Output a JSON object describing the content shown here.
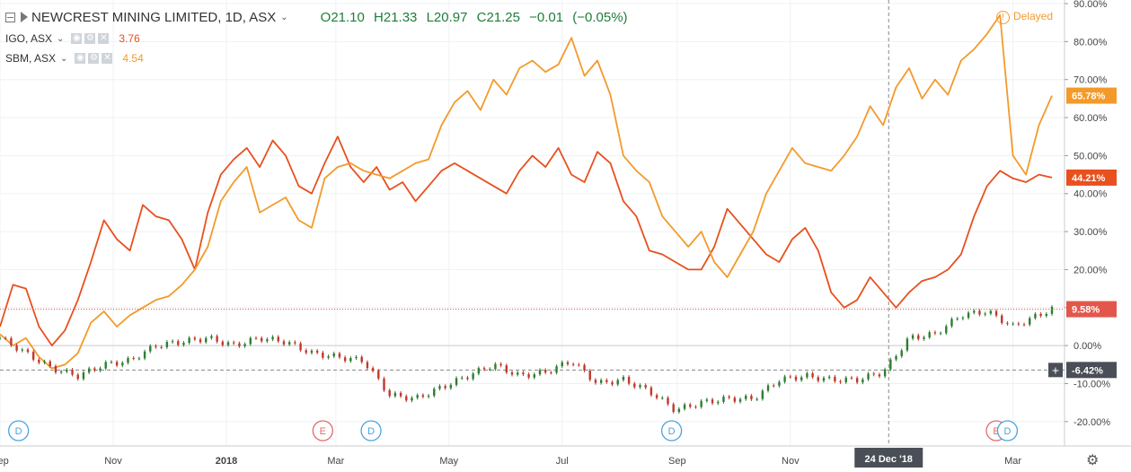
{
  "header": {
    "main_symbol": "NEWCREST MINING LIMITED, 1D, ASX",
    "ohlc": "O21.10 H21.33 L20.97 C21.25 −0.01 (−0.05%)",
    "delayed_label": "Delayed",
    "comparisons": [
      {
        "label": "IGO, ASX",
        "value": "3.76",
        "color": "#e8501e"
      },
      {
        "label": "SBM, ASX",
        "value": "4.54",
        "color": "#f39a2b"
      }
    ]
  },
  "colors": {
    "main_up": "#2e7d32",
    "main_down": "#c0392b",
    "igo": "#e8501e",
    "sbm": "#f39a2b",
    "grid": "#eef1f5",
    "crosshair": "#888888",
    "event_dividend": "#4aa3df",
    "event_earnings": "#e06b6b"
  },
  "chart_data": {
    "type": "line",
    "y_unit": "%",
    "ylim": [
      -25,
      90
    ],
    "y_ticks": [
      "90.00%",
      "80.00%",
      "70.00%",
      "60.00%",
      "50.00%",
      "40.00%",
      "30.00%",
      "20.00%",
      "10.00%",
      "0.00%",
      "-10.00%",
      "-20.00%"
    ],
    "y_tick_values": [
      90,
      80,
      70,
      60,
      50,
      40,
      30,
      20,
      10,
      0,
      -10,
      -20
    ],
    "x_tick_labels": [
      "Sep",
      "Nov",
      "2018",
      "Mar",
      "May",
      "Jul",
      "Sep",
      "Nov",
      "Mar"
    ],
    "x_tick_dates": [
      "2017-09-01",
      "2017-11-01",
      "2018-01-01",
      "2018-03-01",
      "2018-05-01",
      "2018-07-01",
      "2018-09-01",
      "2018-11-01",
      "2019-03-01"
    ],
    "x_range": [
      "2017-09-01",
      "2019-03-22"
    ],
    "crosshair_label": "24 Dec '18",
    "crosshair_date": "2018-12-24",
    "grid": true,
    "series": [
      {
        "name": "IGO, ASX",
        "last_label": "44.21%",
        "points": [
          [
            "2017-09-01",
            5
          ],
          [
            "2017-09-08",
            16
          ],
          [
            "2017-09-15",
            15
          ],
          [
            "2017-09-22",
            5
          ],
          [
            "2017-09-29",
            0
          ],
          [
            "2017-10-06",
            4
          ],
          [
            "2017-10-13",
            12
          ],
          [
            "2017-10-20",
            22
          ],
          [
            "2017-10-27",
            33
          ],
          [
            "2017-11-03",
            28
          ],
          [
            "2017-11-10",
            25
          ],
          [
            "2017-11-17",
            37
          ],
          [
            "2017-11-24",
            34
          ],
          [
            "2017-12-01",
            33
          ],
          [
            "2017-12-08",
            28
          ],
          [
            "2017-12-15",
            20
          ],
          [
            "2017-12-22",
            35
          ],
          [
            "2017-12-29",
            45
          ],
          [
            "2018-01-05",
            49
          ],
          [
            "2018-01-12",
            52
          ],
          [
            "2018-01-19",
            47
          ],
          [
            "2018-01-26",
            54
          ],
          [
            "2018-02-02",
            50
          ],
          [
            "2018-02-09",
            42
          ],
          [
            "2018-02-16",
            40
          ],
          [
            "2018-02-23",
            48
          ],
          [
            "2018-03-02",
            55
          ],
          [
            "2018-03-09",
            47
          ],
          [
            "2018-03-16",
            43
          ],
          [
            "2018-03-23",
            47
          ],
          [
            "2018-03-30",
            41
          ],
          [
            "2018-04-06",
            43
          ],
          [
            "2018-04-13",
            38
          ],
          [
            "2018-04-20",
            42
          ],
          [
            "2018-04-27",
            46
          ],
          [
            "2018-05-04",
            48
          ],
          [
            "2018-05-11",
            46
          ],
          [
            "2018-05-18",
            44
          ],
          [
            "2018-05-25",
            42
          ],
          [
            "2018-06-01",
            40
          ],
          [
            "2018-06-08",
            46
          ],
          [
            "2018-06-15",
            50
          ],
          [
            "2018-06-22",
            47
          ],
          [
            "2018-06-29",
            52
          ],
          [
            "2018-07-06",
            45
          ],
          [
            "2018-07-13",
            43
          ],
          [
            "2018-07-20",
            51
          ],
          [
            "2018-07-27",
            48
          ],
          [
            "2018-08-03",
            38
          ],
          [
            "2018-08-10",
            34
          ],
          [
            "2018-08-17",
            25
          ],
          [
            "2018-08-24",
            24
          ],
          [
            "2018-08-31",
            22
          ],
          [
            "2018-09-07",
            20
          ],
          [
            "2018-09-14",
            20
          ],
          [
            "2018-09-21",
            26
          ],
          [
            "2018-09-28",
            36
          ],
          [
            "2018-10-05",
            32
          ],
          [
            "2018-10-12",
            28
          ],
          [
            "2018-10-19",
            24
          ],
          [
            "2018-10-26",
            22
          ],
          [
            "2018-11-02",
            28
          ],
          [
            "2018-11-09",
            31
          ],
          [
            "2018-11-16",
            25
          ],
          [
            "2018-11-23",
            14
          ],
          [
            "2018-11-30",
            10
          ],
          [
            "2018-12-07",
            12
          ],
          [
            "2018-12-14",
            18
          ],
          [
            "2018-12-21",
            14
          ],
          [
            "2018-12-28",
            10
          ],
          [
            "2019-01-04",
            14
          ],
          [
            "2019-01-11",
            17
          ],
          [
            "2019-01-18",
            18
          ],
          [
            "2019-01-25",
            20
          ],
          [
            "2019-02-01",
            24
          ],
          [
            "2019-02-08",
            34
          ],
          [
            "2019-02-15",
            42
          ],
          [
            "2019-02-22",
            46
          ],
          [
            "2019-03-01",
            44
          ],
          [
            "2019-03-08",
            43
          ],
          [
            "2019-03-15",
            45
          ],
          [
            "2019-03-22",
            44.21
          ]
        ]
      },
      {
        "name": "SBM, ASX",
        "last_label": "65.78%",
        "points": [
          [
            "2017-09-01",
            3
          ],
          [
            "2017-09-08",
            0
          ],
          [
            "2017-09-15",
            2
          ],
          [
            "2017-09-22",
            -3
          ],
          [
            "2017-09-29",
            -6
          ],
          [
            "2017-10-06",
            -5
          ],
          [
            "2017-10-13",
            -2
          ],
          [
            "2017-10-20",
            6
          ],
          [
            "2017-10-27",
            9
          ],
          [
            "2017-11-03",
            5
          ],
          [
            "2017-11-10",
            8
          ],
          [
            "2017-11-17",
            10
          ],
          [
            "2017-11-24",
            12
          ],
          [
            "2017-12-01",
            13
          ],
          [
            "2017-12-08",
            16
          ],
          [
            "2017-12-15",
            20
          ],
          [
            "2017-12-22",
            26
          ],
          [
            "2017-12-29",
            38
          ],
          [
            "2018-01-05",
            43
          ],
          [
            "2018-01-12",
            47
          ],
          [
            "2018-01-19",
            35
          ],
          [
            "2018-01-26",
            37
          ],
          [
            "2018-02-02",
            39
          ],
          [
            "2018-02-09",
            33
          ],
          [
            "2018-02-16",
            31
          ],
          [
            "2018-02-23",
            44
          ],
          [
            "2018-03-02",
            47
          ],
          [
            "2018-03-09",
            48
          ],
          [
            "2018-03-16",
            46
          ],
          [
            "2018-03-23",
            45
          ],
          [
            "2018-03-30",
            44
          ],
          [
            "2018-04-06",
            46
          ],
          [
            "2018-04-13",
            48
          ],
          [
            "2018-04-20",
            49
          ],
          [
            "2018-04-27",
            58
          ],
          [
            "2018-05-04",
            64
          ],
          [
            "2018-05-11",
            67
          ],
          [
            "2018-05-18",
            62
          ],
          [
            "2018-05-25",
            70
          ],
          [
            "2018-06-01",
            66
          ],
          [
            "2018-06-08",
            73
          ],
          [
            "2018-06-15",
            75
          ],
          [
            "2018-06-22",
            72
          ],
          [
            "2018-06-29",
            74
          ],
          [
            "2018-07-06",
            81
          ],
          [
            "2018-07-13",
            71
          ],
          [
            "2018-07-20",
            75
          ],
          [
            "2018-07-27",
            66
          ],
          [
            "2018-08-03",
            50
          ],
          [
            "2018-08-10",
            46
          ],
          [
            "2018-08-17",
            43
          ],
          [
            "2018-08-24",
            34
          ],
          [
            "2018-08-31",
            30
          ],
          [
            "2018-09-07",
            26
          ],
          [
            "2018-09-14",
            30
          ],
          [
            "2018-09-21",
            22
          ],
          [
            "2018-09-28",
            18
          ],
          [
            "2018-10-05",
            24
          ],
          [
            "2018-10-12",
            30
          ],
          [
            "2018-10-19",
            40
          ],
          [
            "2018-10-26",
            46
          ],
          [
            "2018-11-02",
            52
          ],
          [
            "2018-11-09",
            48
          ],
          [
            "2018-11-16",
            47
          ],
          [
            "2018-11-23",
            46
          ],
          [
            "2018-11-30",
            50
          ],
          [
            "2018-12-07",
            55
          ],
          [
            "2018-12-14",
            63
          ],
          [
            "2018-12-21",
            58
          ],
          [
            "2018-12-28",
            68
          ],
          [
            "2019-01-04",
            73
          ],
          [
            "2019-01-11",
            65
          ],
          [
            "2019-01-18",
            70
          ],
          [
            "2019-01-25",
            66
          ],
          [
            "2019-02-01",
            75
          ],
          [
            "2019-02-08",
            78
          ],
          [
            "2019-02-15",
            82
          ],
          [
            "2019-02-22",
            87
          ],
          [
            "2019-03-01",
            50
          ],
          [
            "2019-03-08",
            45
          ],
          [
            "2019-03-15",
            58
          ],
          [
            "2019-03-22",
            65.78
          ]
        ]
      },
      {
        "name": "NEWCREST MINING LIMITED, 1D, ASX",
        "kind": "candles",
        "last_label": "9.58%",
        "points": [
          [
            "2017-09-01",
            2
          ],
          [
            "2017-09-15",
            -2
          ],
          [
            "2017-09-29",
            -6
          ],
          [
            "2017-10-13",
            -8
          ],
          [
            "2017-10-27",
            -5
          ],
          [
            "2017-11-10",
            -4
          ],
          [
            "2017-11-24",
            0
          ],
          [
            "2017-12-08",
            1
          ],
          [
            "2017-12-22",
            2
          ],
          [
            "2018-01-05",
            0
          ],
          [
            "2018-01-19",
            2
          ],
          [
            "2018-02-02",
            1
          ],
          [
            "2018-02-16",
            -2
          ],
          [
            "2018-03-02",
            -3
          ],
          [
            "2018-03-16",
            -4
          ],
          [
            "2018-03-30",
            -13
          ],
          [
            "2018-04-13",
            -14
          ],
          [
            "2018-04-27",
            -11
          ],
          [
            "2018-05-11",
            -8
          ],
          [
            "2018-05-25",
            -5
          ],
          [
            "2018-06-08",
            -8
          ],
          [
            "2018-06-22",
            -7
          ],
          [
            "2018-07-06",
            -4
          ],
          [
            "2018-07-20",
            -10
          ],
          [
            "2018-08-03",
            -9
          ],
          [
            "2018-08-17",
            -12
          ],
          [
            "2018-08-31",
            -17
          ],
          [
            "2018-09-14",
            -15
          ],
          [
            "2018-09-28",
            -14
          ],
          [
            "2018-10-12",
            -14
          ],
          [
            "2018-10-26",
            -9
          ],
          [
            "2018-11-09",
            -8
          ],
          [
            "2018-11-23",
            -9
          ],
          [
            "2018-12-07",
            -9
          ],
          [
            "2018-12-21",
            -7
          ],
          [
            "2019-01-04",
            2
          ],
          [
            "2019-01-18",
            3
          ],
          [
            "2019-02-01",
            8
          ],
          [
            "2019-02-15",
            9
          ],
          [
            "2019-03-01",
            5
          ],
          [
            "2019-03-22",
            9.58
          ]
        ]
      }
    ],
    "reference_line": {
      "label": "-6.42%",
      "value": -6.42
    },
    "events": [
      {
        "label": "D",
        "date": "2017-09-11",
        "type": "dividend"
      },
      {
        "label": "E",
        "date": "2018-02-22",
        "type": "earnings"
      },
      {
        "label": "D",
        "date": "2018-03-20",
        "type": "dividend"
      },
      {
        "label": "D",
        "date": "2018-08-29",
        "type": "dividend"
      },
      {
        "label": "E",
        "date": "2019-02-20",
        "type": "earnings"
      },
      {
        "label": "D",
        "date": "2019-02-26",
        "type": "dividend"
      }
    ]
  }
}
